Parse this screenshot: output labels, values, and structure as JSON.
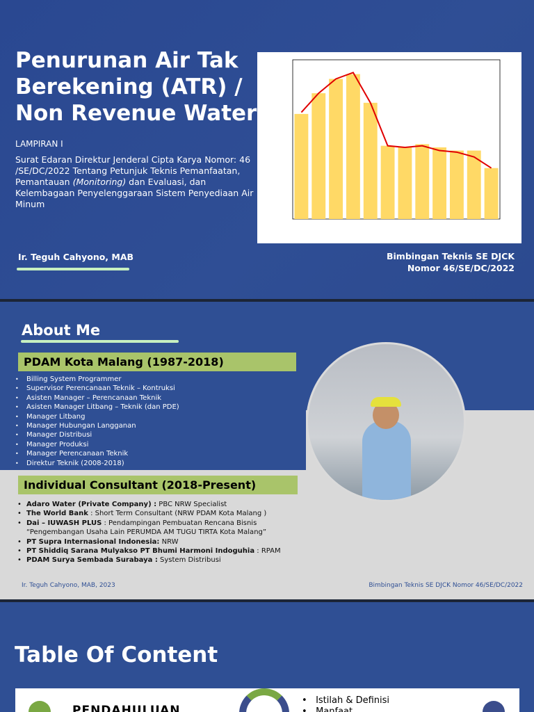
{
  "slide1": {
    "title_lines": [
      "Penurunan Air Tak",
      "Berekening (ATR) /",
      "Non Revenue Water"
    ],
    "subtitle": "LAMPIRAN I",
    "desc_parts": [
      "Surat Edaran Direktur Jenderal Cipta Karya Nomor: 46 /SE/DC/2022 Tentang Petunjuk Teknis Pemanfaatan, Pemantauan ",
      "(Monitoring)",
      " dan Evaluasi, dan Kelembagaan Penyelenggaraan Sistem Penyediaan Air Minum"
    ],
    "author": "Ir. Teguh Cahyono, MAB",
    "event_lines": [
      "Bimbingan Teknis SE DJCK",
      "Nomor 46/SE/DC/2022"
    ],
    "chart": {
      "type": "bar",
      "values": [
        66,
        79,
        88,
        91,
        73,
        46,
        45,
        47,
        45,
        43,
        43,
        32
      ],
      "line_values": [
        67,
        79,
        88,
        92,
        73,
        46,
        45,
        46,
        43,
        42,
        39,
        32
      ],
      "ylim": [
        0,
        100
      ],
      "bar_color": "#ffd966",
      "line_color": "#e00000"
    }
  },
  "slide2": {
    "title": "About Me",
    "section1": "PDAM Kota Malang (1987-2018)",
    "roles": [
      "Billing System Programmer",
      "Supervisor Perencanaan Teknik – Kontruksi",
      "Asisten Manager – Perencanaan Teknik",
      "Asisten Manager Litbang – Teknik (dan PDE)",
      "Manager Litbang",
      "Manager Hubungan Langganan",
      "Manager Distribusi",
      "Manager Produksi",
      "Manager Perencanaan Teknik",
      "Direktur Teknik (2008-2018)"
    ],
    "section2": "Individual Consultant (2018-Present)",
    "consultancies": [
      {
        "org": "Adaro Water (Private Company) :",
        "role": " PBC NRW Specialist"
      },
      {
        "org": "The World Bank",
        "role": " : Short Term Consultant (NRW PDAM Kota Malang )"
      },
      {
        "org": "Dai – IUWASH PLUS",
        "role": " : Pendampingan Pembuatan Rencana Bisnis “Pengembangan Usaha Lain PERUMDA AM TUGU TIRTA Kota Malang”"
      },
      {
        "org": "PT Supra Internasional Indonesia:",
        "role": " NRW"
      },
      {
        "org": "PT Shiddiq Sarana Mulyakso PT Bhumi Harmoni Indoguhia",
        "role": " : RPAM"
      },
      {
        "org": "PDAM Surya Sembada Surabaya :",
        "role": "  System Distribusi"
      }
    ],
    "footer_left": "Ir. Teguh Cahyono, MAB, 2023",
    "footer_right": "Bimbingan Teknis SE DJCK Nomor 46/SE/DC/2022"
  },
  "slide3": {
    "title": "Table Of Content",
    "item": "PENDAHULUAN",
    "bullets": [
      "Istilah & Definisi",
      "Manfaat"
    ]
  }
}
